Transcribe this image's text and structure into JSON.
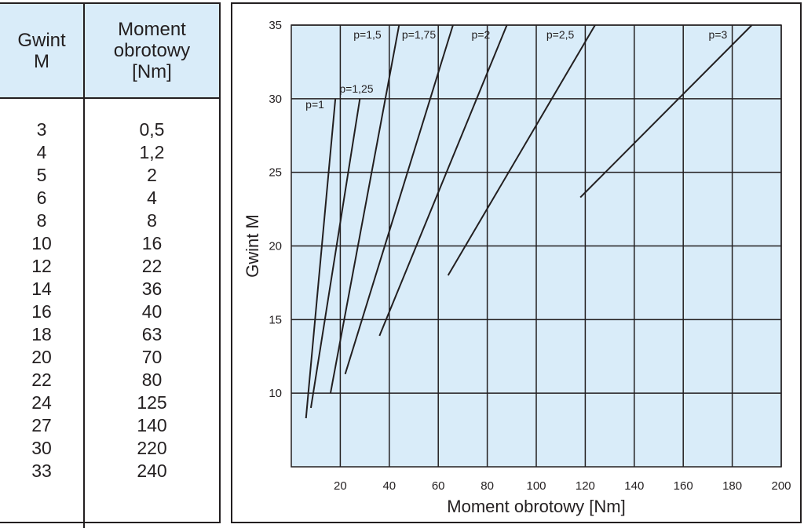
{
  "table": {
    "header": {
      "col1": [
        "Gwint",
        "M"
      ],
      "col2": [
        "Moment",
        "obrotowy",
        "[Nm]"
      ]
    },
    "rows": [
      [
        "3",
        "0,5"
      ],
      [
        "4",
        "1,2"
      ],
      [
        "5",
        "2"
      ],
      [
        "6",
        "4"
      ],
      [
        "8",
        "8"
      ],
      [
        "10",
        "16"
      ],
      [
        "12",
        "22"
      ],
      [
        "14",
        "36"
      ],
      [
        "16",
        "40"
      ],
      [
        "18",
        "63"
      ],
      [
        "20",
        "70"
      ],
      [
        "22",
        "80"
      ],
      [
        "24",
        "125"
      ],
      [
        "27",
        "140"
      ],
      [
        "30",
        "220"
      ],
      [
        "33",
        "240"
      ]
    ]
  },
  "chart_data": {
    "type": "line",
    "title": "",
    "xlabel": "Moment obrotowy [Nm]",
    "ylabel": "Gwint M",
    "xlim": [
      0,
      200
    ],
    "ylim": [
      5,
      35
    ],
    "xticks": [
      "20",
      "40",
      "60",
      "80",
      "100",
      "120",
      "140",
      "160",
      "180",
      "200"
    ],
    "yticks": [
      "10",
      "15",
      "20",
      "25",
      "30",
      "35"
    ],
    "grid": true,
    "colors": {
      "plot_bg": "#d9ecf9",
      "line": "#231f20",
      "grid": "#231f20"
    },
    "series": [
      {
        "name": "p=1",
        "points": [
          [
            6,
            8.3
          ],
          [
            18,
            30
          ]
        ]
      },
      {
        "name": "p=1,25",
        "points": [
          [
            8,
            9
          ],
          [
            28,
            30
          ]
        ]
      },
      {
        "name": "p=1,5",
        "points": [
          [
            16,
            10
          ],
          [
            44,
            35
          ]
        ]
      },
      {
        "name": "p=1,75",
        "points": [
          [
            22,
            11.3
          ],
          [
            66,
            35
          ]
        ]
      },
      {
        "name": "p=2",
        "points": [
          [
            36,
            13.9
          ],
          [
            88,
            35
          ]
        ]
      },
      {
        "name": "p=2,5",
        "points": [
          [
            64,
            18
          ],
          [
            124,
            35
          ]
        ]
      },
      {
        "name": "p=3",
        "points": [
          [
            118,
            23.3
          ],
          [
            188,
            35
          ]
        ]
      }
    ]
  }
}
